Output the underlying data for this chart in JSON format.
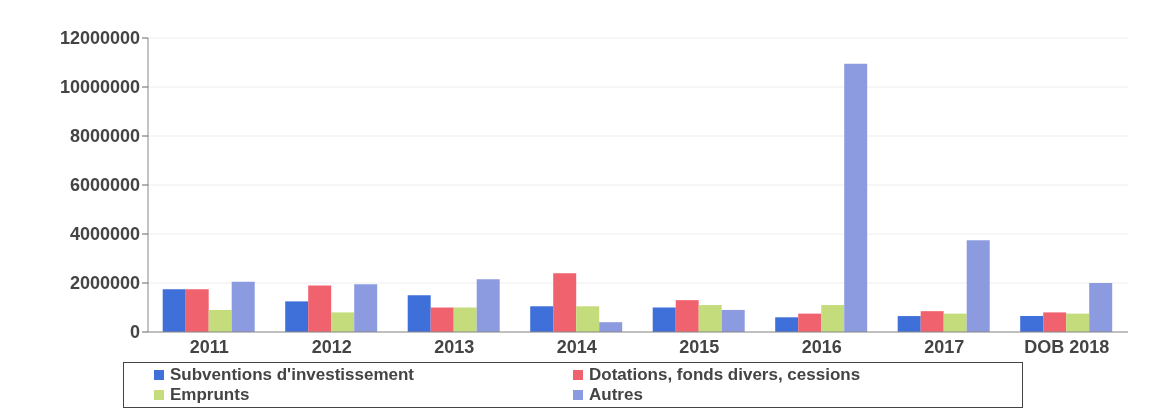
{
  "chart_data": {
    "type": "bar",
    "categories": [
      "2011",
      "2012",
      "2013",
      "2014",
      "2015",
      "2016",
      "2017",
      "DOB 2018"
    ],
    "series": [
      {
        "name": "Subventions d'investissement",
        "color": "#3f6fd8",
        "values": [
          1750000,
          1250000,
          1500000,
          1050000,
          1000000,
          600000,
          650000,
          650000
        ]
      },
      {
        "name": "Dotations, fonds divers, cessions",
        "color": "#f0626e",
        "values": [
          1750000,
          1900000,
          1000000,
          2400000,
          1300000,
          750000,
          850000,
          800000
        ]
      },
      {
        "name": "Emprunts",
        "color": "#c4dc7c",
        "values": [
          900000,
          800000,
          1000000,
          1050000,
          1100000,
          1100000,
          750000,
          750000
        ]
      },
      {
        "name": "Autres",
        "color": "#8c9ae0",
        "values": [
          2050000,
          1950000,
          2150000,
          400000,
          900000,
          10950000,
          3750000,
          2000000
        ]
      }
    ],
    "ylim": [
      0,
      12000000
    ],
    "yticks": [
      0,
      2000000,
      4000000,
      6000000,
      8000000,
      10000000,
      12000000
    ],
    "grid": "y",
    "legend": "bottom"
  }
}
